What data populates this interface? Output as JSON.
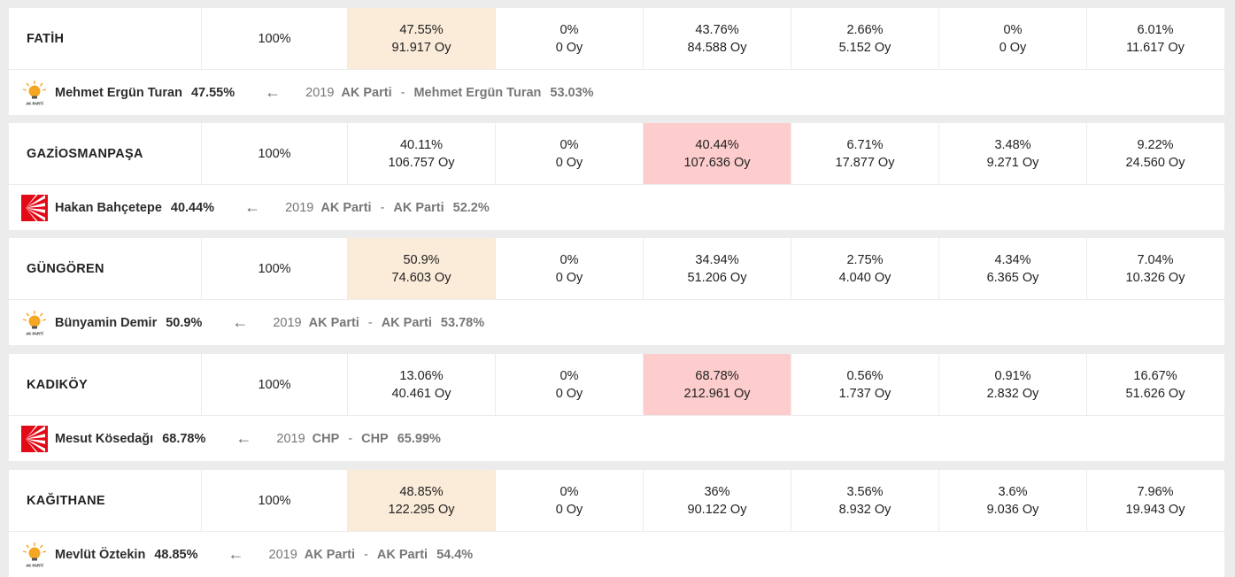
{
  "vote_suffix": "Oy",
  "districts": [
    {
      "name": "FATİH",
      "opened": "100%",
      "winner_col": 0,
      "winner_party": "ak",
      "columns": [
        {
          "pct": "47.55%",
          "votes": "91.917 Oy"
        },
        {
          "pct": "0%",
          "votes": "0 Oy"
        },
        {
          "pct": "43.76%",
          "votes": "84.588 Oy"
        },
        {
          "pct": "2.66%",
          "votes": "5.152 Oy"
        },
        {
          "pct": "0%",
          "votes": "0 Oy"
        },
        {
          "pct": "6.01%",
          "votes": "11.617 Oy"
        }
      ],
      "candidate": "Mehmet Ergün Turan",
      "candidate_pct": "47.55%",
      "prev_year": "2019",
      "prev_party": "AK Parti",
      "prev_winner": "Mehmet Ergün Turan",
      "prev_pct": "53.03%"
    },
    {
      "name": "GAZİOSMANPAŞA",
      "opened": "100%",
      "winner_col": 2,
      "winner_party": "chp",
      "columns": [
        {
          "pct": "40.11%",
          "votes": "106.757 Oy"
        },
        {
          "pct": "0%",
          "votes": "0 Oy"
        },
        {
          "pct": "40.44%",
          "votes": "107.636 Oy"
        },
        {
          "pct": "6.71%",
          "votes": "17.877 Oy"
        },
        {
          "pct": "3.48%",
          "votes": "9.271 Oy"
        },
        {
          "pct": "9.22%",
          "votes": "24.560 Oy"
        }
      ],
      "candidate": "Hakan Bahçetepe",
      "candidate_pct": "40.44%",
      "prev_year": "2019",
      "prev_party": "AK Parti",
      "prev_winner": "AK Parti",
      "prev_pct": "52.2%"
    },
    {
      "name": "GÜNGÖREN",
      "opened": "100%",
      "winner_col": 0,
      "winner_party": "ak",
      "columns": [
        {
          "pct": "50.9%",
          "votes": "74.603 Oy"
        },
        {
          "pct": "0%",
          "votes": "0 Oy"
        },
        {
          "pct": "34.94%",
          "votes": "51.206 Oy"
        },
        {
          "pct": "2.75%",
          "votes": "4.040 Oy"
        },
        {
          "pct": "4.34%",
          "votes": "6.365 Oy"
        },
        {
          "pct": "7.04%",
          "votes": "10.326 Oy"
        }
      ],
      "candidate": "Bünyamin Demir",
      "candidate_pct": "50.9%",
      "prev_year": "2019",
      "prev_party": "AK Parti",
      "prev_winner": "AK Parti",
      "prev_pct": "53.78%"
    },
    {
      "name": "KADIKÖY",
      "opened": "100%",
      "winner_col": 2,
      "winner_party": "chp",
      "columns": [
        {
          "pct": "13.06%",
          "votes": "40.461 Oy"
        },
        {
          "pct": "0%",
          "votes": "0 Oy"
        },
        {
          "pct": "68.78%",
          "votes": "212.961 Oy"
        },
        {
          "pct": "0.56%",
          "votes": "1.737 Oy"
        },
        {
          "pct": "0.91%",
          "votes": "2.832 Oy"
        },
        {
          "pct": "16.67%",
          "votes": "51.626 Oy"
        }
      ],
      "candidate": "Mesut Kösedağı",
      "candidate_pct": "68.78%",
      "prev_year": "2019",
      "prev_party": "CHP",
      "prev_winner": "CHP",
      "prev_pct": "65.99%"
    },
    {
      "name": "KAĞITHANE",
      "opened": "100%",
      "winner_col": 0,
      "winner_party": "ak",
      "columns": [
        {
          "pct": "48.85%",
          "votes": "122.295 Oy"
        },
        {
          "pct": "0%",
          "votes": "0 Oy"
        },
        {
          "pct": "36%",
          "votes": "90.122 Oy"
        },
        {
          "pct": "3.56%",
          "votes": "8.932 Oy"
        },
        {
          "pct": "3.6%",
          "votes": "9.036 Oy"
        },
        {
          "pct": "7.96%",
          "votes": "19.943 Oy"
        }
      ],
      "candidate": "Mevlüt Öztekin",
      "candidate_pct": "48.85%",
      "prev_year": "2019",
      "prev_party": "AK Parti",
      "prev_winner": "AK Parti",
      "prev_pct": "54.4%"
    }
  ],
  "logos": {
    "ak_text": "AK PARTİ"
  },
  "colors": {
    "ak_highlight": "#fbebd9",
    "chp_highlight": "#fdcccc",
    "chp_red": "#e30a17",
    "ak_yellow": "#f5a623"
  }
}
